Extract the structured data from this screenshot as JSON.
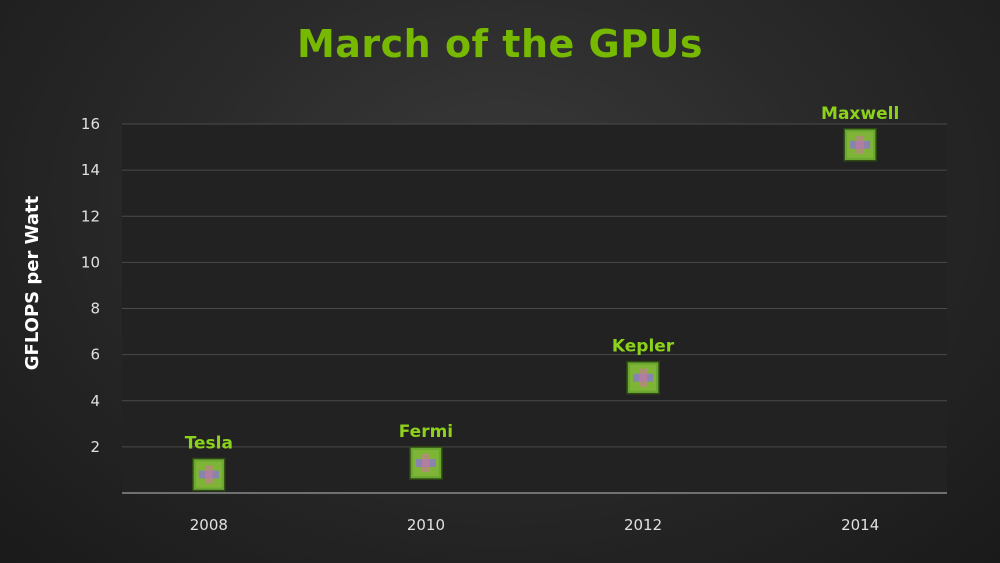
{
  "slide": {
    "title": "March of the GPUs"
  },
  "chart_data": {
    "type": "scatter",
    "title": "March of the GPUs",
    "xlabel": "",
    "ylabel": "GFLOPS per Watt",
    "x_ticks": [
      "2008",
      "2010",
      "2012",
      "2014"
    ],
    "y_ticks": [
      2,
      4,
      6,
      8,
      10,
      12,
      14,
      16
    ],
    "ylim": [
      0,
      16
    ],
    "xlim": [
      2007.2,
      2014.8
    ],
    "grid": true,
    "legend": "none",
    "points": [
      {
        "label": "Tesla",
        "x": 2008,
        "y": 0.8
      },
      {
        "label": "Fermi",
        "x": 2010,
        "y": 1.3
      },
      {
        "label": "Kepler",
        "x": 2012,
        "y": 5.0
      },
      {
        "label": "Maxwell",
        "x": 2014,
        "y": 15.1
      }
    ],
    "colors": {
      "title": "#76b900",
      "point_label": "#8cd11a",
      "chip": "#6aa832",
      "grid": "#4a4a4a",
      "axis": "#8a8a8a"
    }
  }
}
